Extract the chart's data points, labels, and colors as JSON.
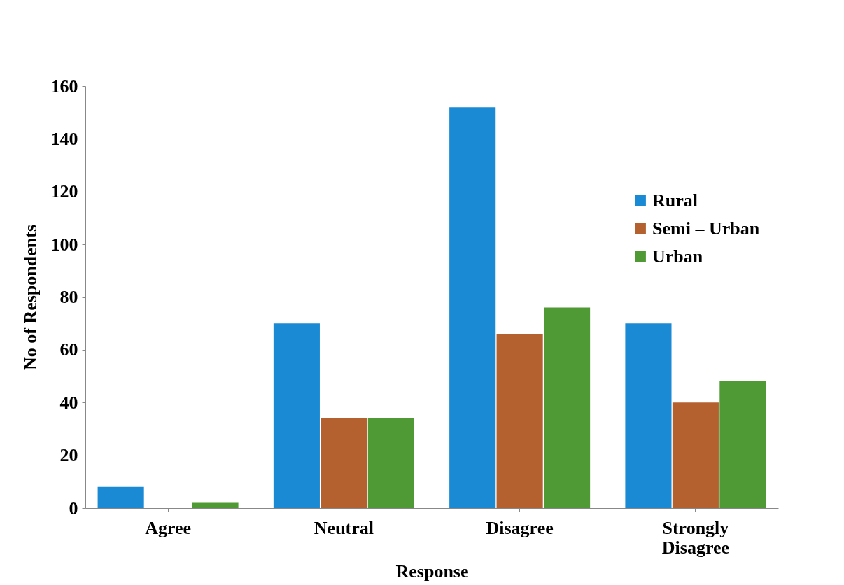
{
  "chart_data": {
    "type": "bar",
    "xlabel": "Response",
    "ylabel": "No of Respondents",
    "categories": [
      "Agree",
      "Neutral",
      "Disagree",
      "Strongly Disagree"
    ],
    "series": [
      {
        "name": "Rural",
        "color": "#1a8ad4",
        "values": [
          8,
          70,
          152,
          70
        ]
      },
      {
        "name": "Semi – Urban",
        "color": "#b4612f",
        "values": [
          0,
          34,
          66,
          40
        ]
      },
      {
        "name": "Urban",
        "color": "#4f9a34",
        "values": [
          2,
          34,
          76,
          48
        ]
      }
    ],
    "ylim": [
      0,
      160
    ],
    "yticks": [
      0,
      20,
      40,
      60,
      80,
      100,
      120,
      140,
      160
    ],
    "grid": false,
    "legend": "right"
  }
}
